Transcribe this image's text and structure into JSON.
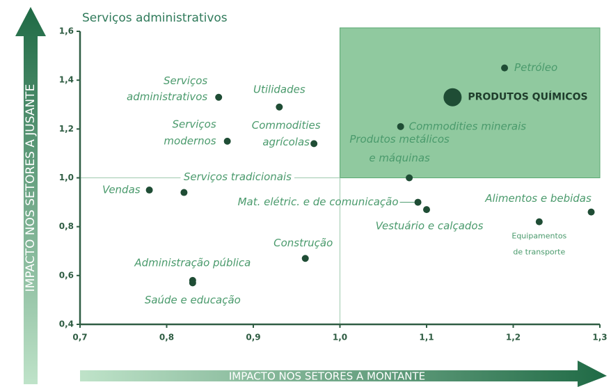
{
  "chart_data": {
    "type": "scatter",
    "title": "Serviços administrativos",
    "ylabel": "IMPACTO NOS SETORES A JUSANTE",
    "xlabel": "IMPACTO NOS SETORES A MONTANTE",
    "xlim": [
      0.7,
      1.3
    ],
    "ylim": [
      0.4,
      1.6
    ],
    "xticks": [
      {
        "value": 0.7,
        "label": "0,7"
      },
      {
        "value": 0.8,
        "label": "0,8"
      },
      {
        "value": 0.9,
        "label": "0,9"
      },
      {
        "value": 1.0,
        "label": "1,0"
      },
      {
        "value": 1.1,
        "label": "1,1"
      },
      {
        "value": 1.2,
        "label": "1,2"
      },
      {
        "value": 1.3,
        "label": "1,3"
      }
    ],
    "yticks": [
      {
        "value": 0.4,
        "label": "0,4"
      },
      {
        "value": 0.6,
        "label": "0,6"
      },
      {
        "value": 0.8,
        "label": "0,8"
      },
      {
        "value": 1.0,
        "label": "1,0"
      },
      {
        "value": 1.2,
        "label": "1,2"
      },
      {
        "value": 1.4,
        "label": "1,4"
      },
      {
        "value": 1.6,
        "label": "1,6"
      }
    ],
    "quadrant": {
      "x": 1.0,
      "y": 1.0,
      "color": "#7cc08e"
    },
    "color": "#1f4d35",
    "points": [
      {
        "label": [
          "Serviços",
          "administrativos"
        ],
        "x": 0.86,
        "y": 1.33,
        "size": 1
      },
      {
        "label": [
          "Utilidades"
        ],
        "x": 0.93,
        "y": 1.29,
        "size": 1
      },
      {
        "label": [
          "Serviços",
          "modernos"
        ],
        "x": 0.87,
        "y": 1.15,
        "size": 1
      },
      {
        "label": [
          "Commodities",
          "agrícolas"
        ],
        "x": 0.97,
        "y": 1.14,
        "size": 1
      },
      {
        "label": [
          "Commodities minerais"
        ],
        "x": 1.07,
        "y": 1.21,
        "size": 1
      },
      {
        "label": [
          "Petróleo"
        ],
        "x": 1.19,
        "y": 1.45,
        "size": 1
      },
      {
        "label": [
          "PRODUTOS QUÍMICOS"
        ],
        "x": 1.13,
        "y": 1.33,
        "size": 2.6
      },
      {
        "label": [
          "Produtos metálicos",
          "e máquinas"
        ],
        "x": 1.08,
        "y": 1.0,
        "size": 1
      },
      {
        "label": [
          "Serviços tradicionais"
        ],
        "x": 0.82,
        "y": 0.94,
        "size": 1
      },
      {
        "label": [
          "Vendas"
        ],
        "x": 0.78,
        "y": 0.95,
        "size": 1
      },
      {
        "label": [
          "Mat. elétric. e de comunicação"
        ],
        "x": 1.09,
        "y": 0.9,
        "size": 1
      },
      {
        "label": [
          "Vestuário e calçados"
        ],
        "x": 1.1,
        "y": 0.87,
        "size": 1
      },
      {
        "label": [
          "Alimentos e bebidas"
        ],
        "x": 1.29,
        "y": 0.86,
        "size": 1
      },
      {
        "label": [
          "Equipamentos",
          "de transporte"
        ],
        "x": 1.23,
        "y": 0.82,
        "size": 1
      },
      {
        "label": [
          "Construção"
        ],
        "x": 0.96,
        "y": 0.67,
        "size": 1
      },
      {
        "label": [
          "Administração pública"
        ],
        "x": 0.83,
        "y": 0.58,
        "size": 1
      },
      {
        "label": [
          "Saúde e educação"
        ],
        "x": 0.83,
        "y": 0.57,
        "size": 1
      }
    ]
  }
}
